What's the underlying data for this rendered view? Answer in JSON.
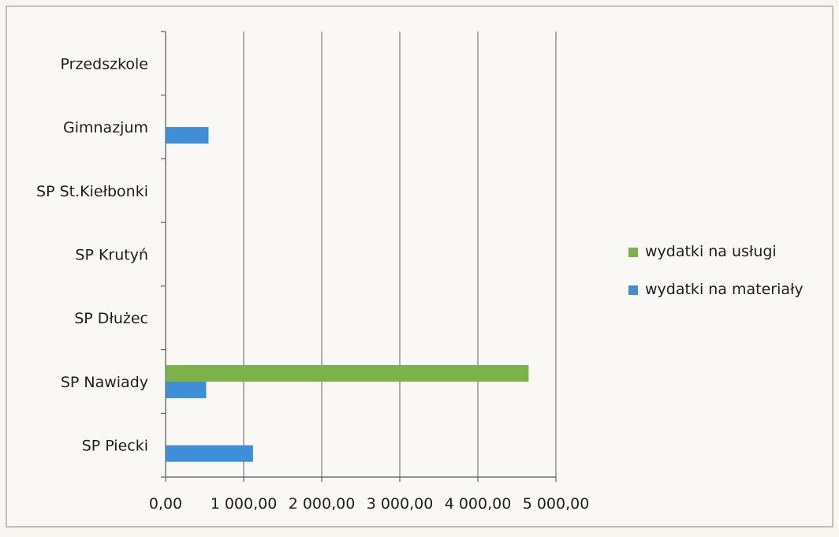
{
  "chart_data": {
    "type": "bar",
    "orientation": "horizontal",
    "categories": [
      "Przedszkole",
      "Gimnazjum",
      "SP St.Kiełbonki",
      "SP Krutyń",
      "SP Dłużec",
      "SP Nawiady",
      "SP Piecki"
    ],
    "series": [
      {
        "name": "wydatki na usługi",
        "color": "#7bb24a",
        "values": [
          0,
          0,
          0,
          0,
          0,
          4650,
          0
        ]
      },
      {
        "name": "wydatki na materiały",
        "color": "#3f8fd8",
        "values": [
          0,
          550,
          0,
          0,
          0,
          520,
          1120
        ]
      }
    ],
    "xlim": [
      0,
      5000
    ],
    "x_ticks": [
      0,
      1000,
      2000,
      3000,
      4000,
      5000
    ],
    "x_tick_labels": [
      "0,00",
      "1 000,00",
      "2 000,00",
      "3 000,00",
      "4 000,00",
      "5 000,00"
    ],
    "grid": true,
    "legend_position": "right"
  }
}
